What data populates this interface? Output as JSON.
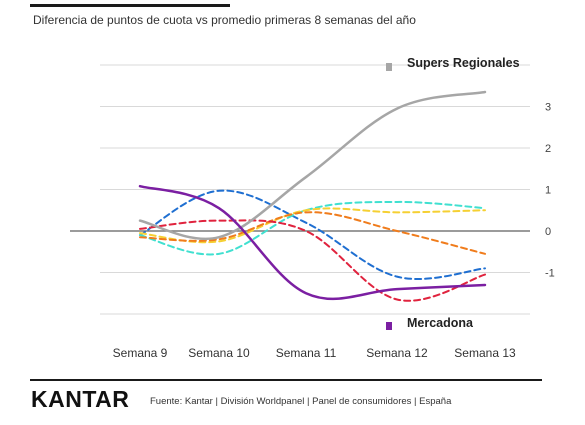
{
  "header": {
    "title": "Diferencia de puntos de cuota vs promedio primeras 8 semanas del año"
  },
  "footer": {
    "logo": "KANTAR",
    "source": "Fuente: Kantar | División Worldpanel | Panel de consumidores | España"
  },
  "chart_data": {
    "type": "line",
    "categories": [
      "Semana 9",
      "Semana 10",
      "Semana 11",
      "Semana 12",
      "Semana 13"
    ],
    "ylim": [
      -2,
      4
    ],
    "y_ticks": [
      3,
      2,
      1,
      0,
      -1
    ],
    "grid": true,
    "legend_position": "annotations",
    "series": [
      {
        "name": "Supers Regionales",
        "color": "#a6a6a6",
        "dash": false,
        "width": 2.5,
        "values": [
          0.25,
          -0.15,
          1.3,
          2.95,
          3.35
        ]
      },
      {
        "name": "Mercadona",
        "color": "#7b1fa2",
        "dash": false,
        "width": 2.5,
        "values": [
          1.08,
          0.55,
          -1.5,
          -1.4,
          -1.3
        ]
      },
      {
        "color": "#1f6fd1",
        "dash": true,
        "width": 2,
        "values": [
          -0.1,
          0.97,
          0.2,
          -1.1,
          -0.9
        ]
      },
      {
        "color": "#40e0d0",
        "dash": true,
        "width": 2,
        "values": [
          -0.1,
          -0.55,
          0.5,
          0.7,
          0.55
        ]
      },
      {
        "color": "#f5d033",
        "dash": true,
        "width": 2,
        "values": [
          -0.05,
          -0.25,
          0.5,
          0.45,
          0.5
        ]
      },
      {
        "color": "#f07c1c",
        "dash": true,
        "width": 2,
        "values": [
          -0.15,
          -0.2,
          0.45,
          0.0,
          -0.55
        ]
      },
      {
        "color": "#e0233e",
        "dash": true,
        "width": 2,
        "values": [
          0.05,
          0.25,
          0.0,
          -1.65,
          -1.05
        ]
      }
    ],
    "annotations": [
      {
        "label": "Supers Regionales",
        "color": "#a6a6a6"
      },
      {
        "label": "Mercadona",
        "color": "#7b1fa2"
      }
    ]
  }
}
